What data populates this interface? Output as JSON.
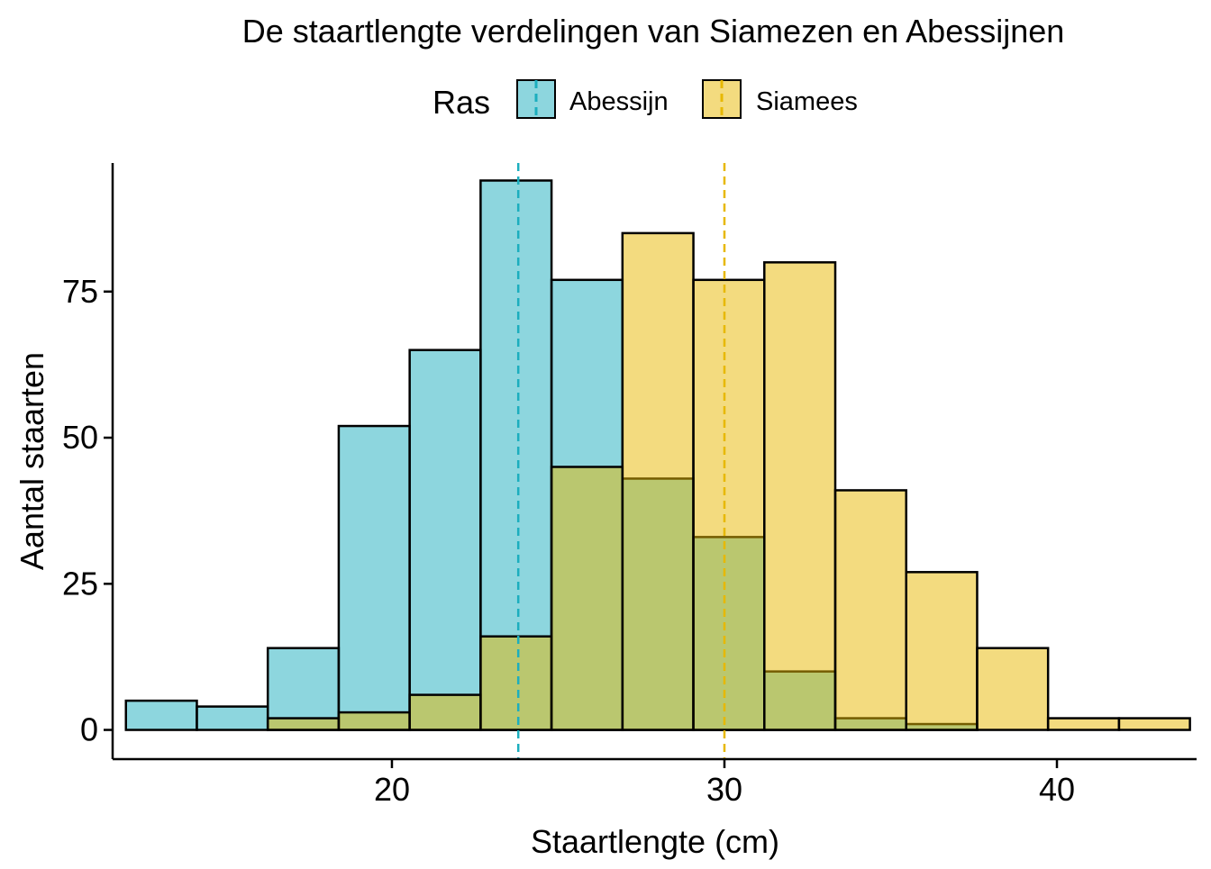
{
  "chart_data": {
    "type": "bar",
    "title": "De staartlengte verdelingen van Siamezen en Abessijnen",
    "xlabel": "Staartlengte (cm)",
    "ylabel": "Aantal staarten",
    "xlim": [
      11.6,
      44.2
    ],
    "ylim": [
      -5,
      97
    ],
    "x_ticks": [
      20,
      30,
      40
    ],
    "x_tick_labels": [
      "20",
      "30",
      "40"
    ],
    "y_ticks": [
      0,
      25,
      50,
      75
    ],
    "y_tick_labels": [
      "0",
      "25",
      "50",
      "75"
    ],
    "grid": false,
    "legend": {
      "title": "Ras",
      "position": "top",
      "entries": [
        "Abessijn",
        "Siamees"
      ]
    },
    "bin_edges": [
      12.0,
      14.1333,
      16.2667,
      18.4,
      20.5333,
      22.6667,
      24.8,
      26.9333,
      29.0667,
      31.2,
      33.3333,
      35.4667,
      37.6,
      39.7333,
      41.8667,
      44.0
    ],
    "series": [
      {
        "name": "Abessijn",
        "color": "#1CAEBE",
        "values": [
          5,
          4,
          14,
          52,
          65,
          94,
          77,
          43,
          33,
          10,
          2,
          1,
          0,
          0,
          0
        ],
        "mean": 23.8
      },
      {
        "name": "Siamees",
        "color": "#E7B800",
        "values": [
          0,
          0,
          2,
          3,
          6,
          16,
          45,
          85,
          77,
          80,
          41,
          27,
          14,
          2,
          2
        ],
        "mean": 30.0
      }
    ]
  }
}
